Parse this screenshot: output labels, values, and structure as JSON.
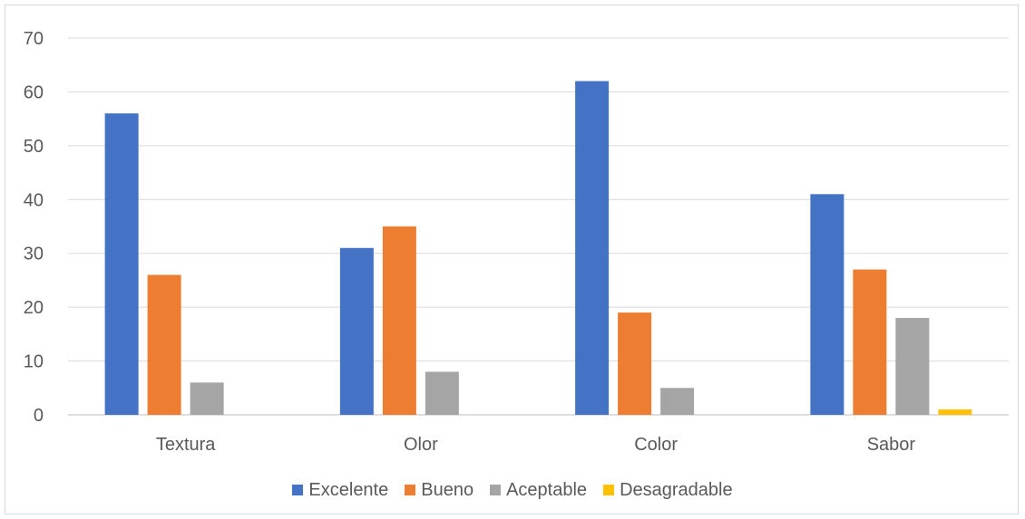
{
  "chart_data": {
    "type": "bar",
    "title": "",
    "xlabel": "",
    "ylabel": "",
    "categories": [
      "Textura",
      "Olor",
      "Color",
      "Sabor"
    ],
    "series": [
      {
        "name": "Excelente",
        "values": [
          56,
          31,
          62,
          41
        ],
        "color": "#4472C4"
      },
      {
        "name": "Bueno",
        "values": [
          26,
          35,
          19,
          27
        ],
        "color": "#ED7D31"
      },
      {
        "name": "Aceptable",
        "values": [
          6,
          8,
          5,
          18
        ],
        "color": "#A5A5A5"
      },
      {
        "name": "Desagradable",
        "values": [
          0,
          0,
          0,
          1
        ],
        "color": "#FFC000"
      }
    ],
    "ylim": [
      0,
      70
    ],
    "yticks": [
      0,
      10,
      20,
      30,
      40,
      50,
      60,
      70
    ],
    "grid": true,
    "legend_position": "bottom"
  }
}
